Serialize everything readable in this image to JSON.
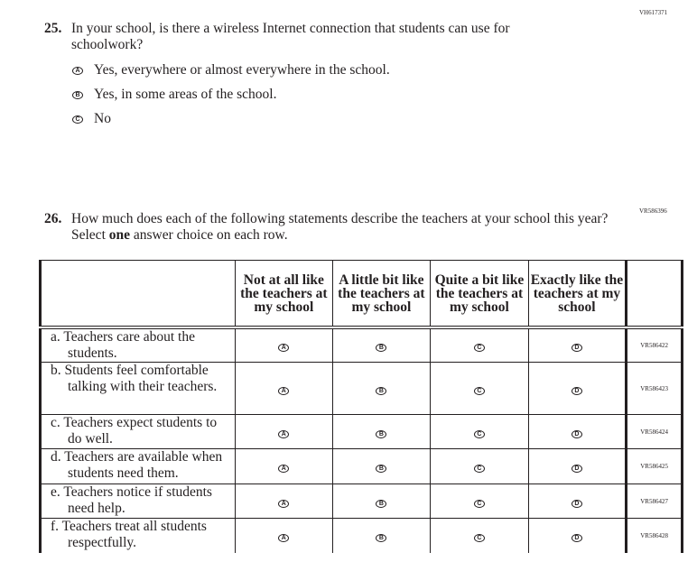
{
  "q25": {
    "code": "VH617371",
    "number": "25.",
    "text": "In your school, is there a wireless Internet connection that students can use for schoolwork?",
    "options": [
      {
        "letter": "A",
        "label": "Yes, everywhere or almost everywhere in the school."
      },
      {
        "letter": "B",
        "label": "Yes, in some areas of the school."
      },
      {
        "letter": "C",
        "label": "No"
      }
    ]
  },
  "q26": {
    "code": "VR586396",
    "number": "26.",
    "text_before": "How much does each of the following statements describe the teachers at your school this year? Select ",
    "text_bold": "one",
    "text_after": " answer choice on each row.",
    "columns": [
      "Not at all like the teachers at my school",
      "A little bit like the teachers at my school",
      "Quite a bit like the teachers at my school",
      "Exactly like the teachers at my school"
    ],
    "bubble_letters": [
      "A",
      "B",
      "C",
      "D"
    ],
    "rows": [
      {
        "label": "a. Teachers care about the students.",
        "code": "VR586422"
      },
      {
        "label": "b. Students feel comfortable talking with their teachers.",
        "code": "VR586423"
      },
      {
        "label": "c. Teachers expect students to do well.",
        "code": "VR586424"
      },
      {
        "label": "d. Teachers are available when students need them.",
        "code": "VR586425"
      },
      {
        "label": "e. Teachers notice if students need help.",
        "code": "VR586427"
      },
      {
        "label": "f. Teachers treat all students respectfully.",
        "code": "VR586428"
      }
    ]
  }
}
